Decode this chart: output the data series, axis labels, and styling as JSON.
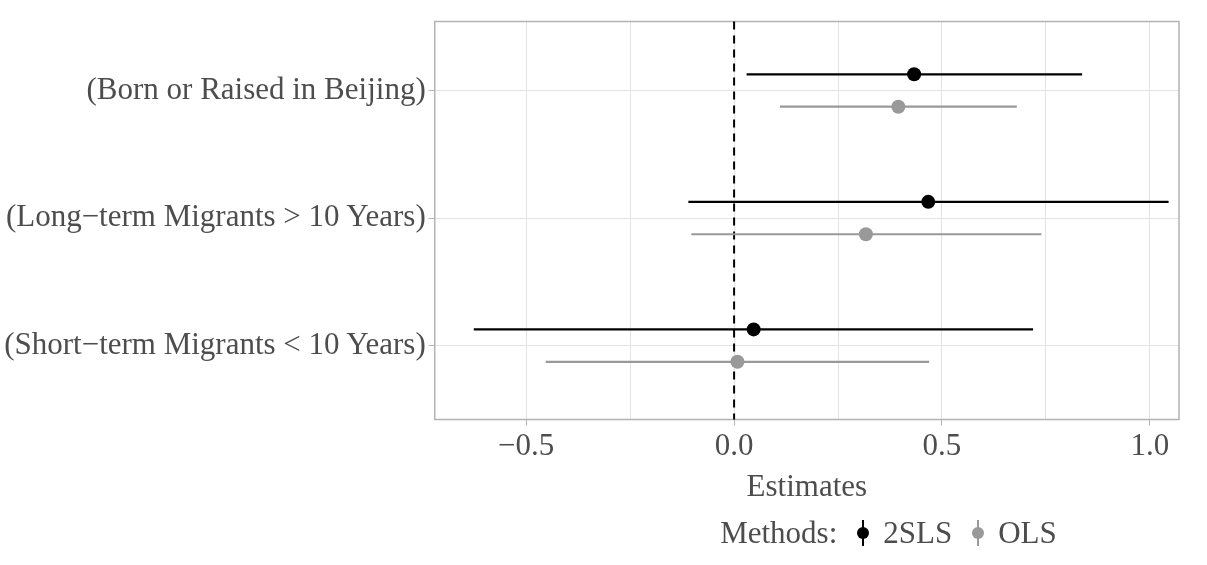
{
  "chart_data": {
    "type": "scatter",
    "orientation": "horizontal",
    "xlabel": "Estimates",
    "legend_title": "Methods:",
    "legend": "bottom",
    "grid": true,
    "marker": "circle",
    "categories": [
      "(Born or Raised in Beijing)",
      "(Long−term Migrants > 10 Years)",
      "(Short−term Migrants < 10 Years)"
    ],
    "xlim": [
      -0.72,
      1.07
    ],
    "xticks": [
      {
        "value": -0.5,
        "label": "−0.5"
      },
      {
        "value": -0.25,
        "label": null
      },
      {
        "value": 0,
        "label": "0.0"
      },
      {
        "value": 0.25,
        "label": null
      },
      0.5,
      {
        "value": 0.75,
        "label": null
      },
      {
        "value": 1,
        "label": "1.0"
      }
    ],
    "ref_lines": [
      {
        "axis": "x",
        "value": 0,
        "line_style": "dashed",
        "color": "#000000"
      }
    ],
    "series": [
      {
        "name": "2SLS",
        "color": "#000000",
        "values": [
          0.433,
          0.467,
          0.047
        ],
        "errors": [
          [
            0.03,
            0.837
          ],
          [
            -0.11,
            1.045
          ],
          [
            -0.626,
            0.719
          ]
        ]
      },
      {
        "name": "OLS",
        "color": "#999999",
        "values": [
          0.395,
          0.317,
          0.008
        ],
        "errors": [
          [
            0.11,
            0.68
          ],
          [
            -0.103,
            0.739
          ],
          [
            -0.453,
            0.469
          ]
        ]
      }
    ]
  }
}
